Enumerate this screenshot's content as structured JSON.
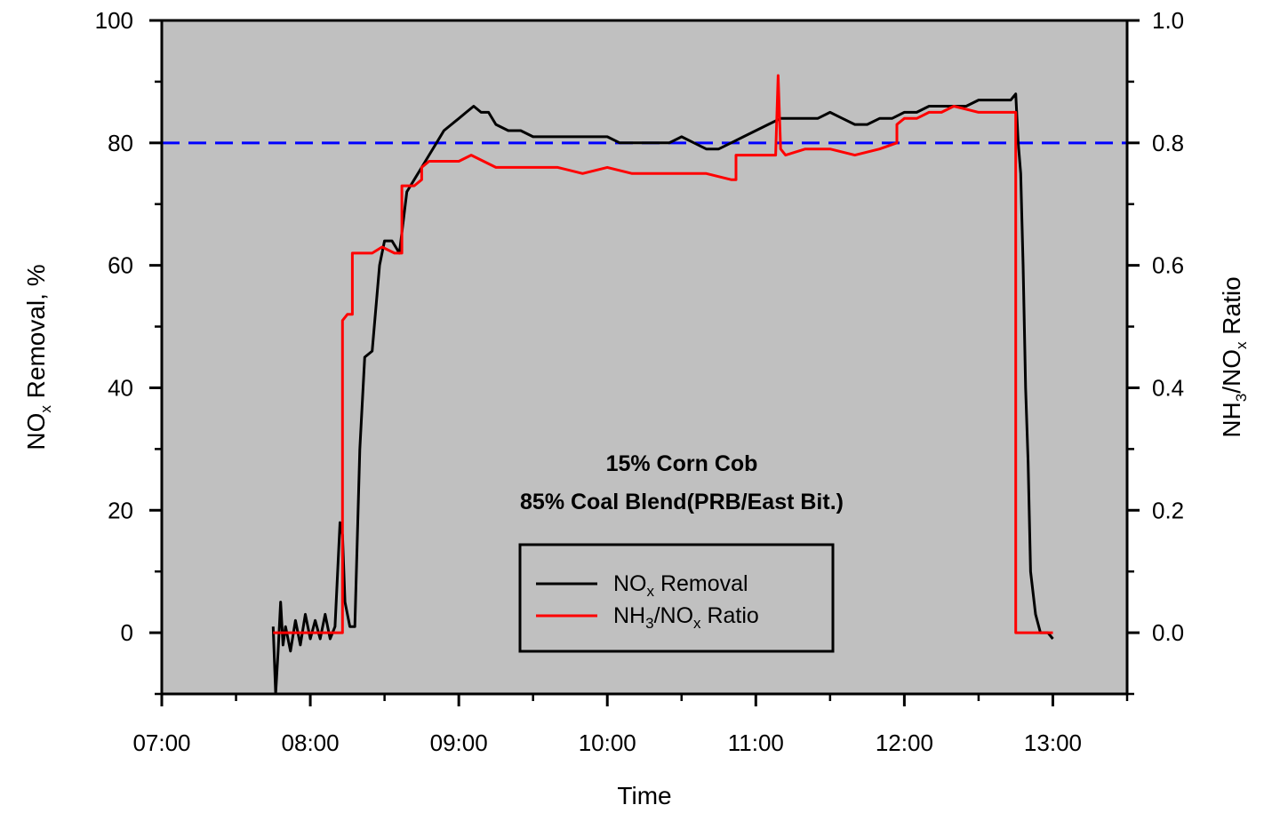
{
  "chart_data": {
    "type": "line",
    "xlabel": "Time",
    "ylabel_left": {
      "main": "NO",
      "sub": "x",
      "rest": " Removal, %"
    },
    "ylabel_right": {
      "a": "NH",
      "a_sub": "3",
      "b": "/NO",
      "b_sub": "x",
      "rest": " Ratio"
    },
    "xlim": [
      "07:00",
      "13:30"
    ],
    "ylim_left": [
      -10,
      100
    ],
    "ylim_right": [
      -0.1,
      1.0
    ],
    "x_ticks": [
      "07:00",
      "08:00",
      "09:00",
      "10:00",
      "11:00",
      "12:00",
      "13:00"
    ],
    "y_ticks_left": [
      "0",
      "20",
      "40",
      "60",
      "80",
      "100"
    ],
    "y_ticks_right": [
      "0.0",
      "0.2",
      "0.4",
      "0.6",
      "0.8",
      "1.0"
    ],
    "reference_line": {
      "y_left": 80,
      "style": "dashed",
      "color": "#0000ff"
    },
    "annotation": [
      "15% Corn Cob",
      "85% Coal Blend(PRB/East Bit.)"
    ],
    "legend_placement": "lower-center",
    "background": "#c0c0c0",
    "series": [
      {
        "axis": "left",
        "color": "#000000",
        "legend": {
          "main": "NO",
          "sub": "x",
          "rest": " Removal"
        },
        "x": [
          "07:45",
          "07:46",
          "07:47",
          "07:48",
          "07:49",
          "07:50",
          "07:52",
          "07:54",
          "07:56",
          "07:58",
          "08:00",
          "08:02",
          "08:04",
          "08:06",
          "08:08",
          "08:10",
          "08:12",
          "08:13",
          "08:14",
          "08:16",
          "08:18",
          "08:20",
          "08:22",
          "08:25",
          "08:28",
          "08:30",
          "08:33",
          "08:36",
          "08:39",
          "08:42",
          "08:45",
          "08:48",
          "08:51",
          "08:54",
          "08:57",
          "09:00",
          "09:03",
          "09:06",
          "09:09",
          "09:12",
          "09:15",
          "09:20",
          "09:25",
          "09:30",
          "09:35",
          "09:40",
          "09:45",
          "09:50",
          "09:55",
          "10:00",
          "10:05",
          "10:10",
          "10:15",
          "10:20",
          "10:25",
          "10:30",
          "10:35",
          "10:40",
          "10:45",
          "10:50",
          "10:55",
          "11:00",
          "11:05",
          "11:10",
          "11:15",
          "11:20",
          "11:25",
          "11:30",
          "11:35",
          "11:40",
          "11:45",
          "11:50",
          "11:55",
          "12:00",
          "12:05",
          "12:10",
          "12:15",
          "12:20",
          "12:25",
          "12:30",
          "12:35",
          "12:40",
          "12:43",
          "12:45",
          "12:46",
          "12:47",
          "12:48",
          "12:49",
          "12:50",
          "12:51",
          "12:53",
          "12:55",
          "12:58",
          "13:00"
        ],
        "y": [
          1,
          -10,
          -3,
          5,
          -2,
          1,
          -3,
          2,
          -2,
          3,
          -1,
          2,
          -1,
          3,
          -1,
          1,
          18,
          16,
          5,
          1,
          1,
          30,
          45,
          46,
          60,
          64,
          64,
          62,
          72,
          74,
          76,
          78,
          80,
          82,
          83,
          84,
          85,
          86,
          85,
          85,
          83,
          82,
          82,
          81,
          81,
          81,
          81,
          81,
          81,
          81,
          80,
          80,
          80,
          80,
          80,
          81,
          80,
          79,
          79,
          80,
          81,
          82,
          83,
          84,
          84,
          84,
          84,
          85,
          84,
          83,
          83,
          84,
          84,
          85,
          85,
          86,
          86,
          86,
          86,
          87,
          87,
          87,
          87,
          88,
          80,
          75,
          60,
          40,
          28,
          10,
          3,
          0,
          0,
          -1
        ]
      },
      {
        "axis": "right",
        "color": "#ff0000",
        "legend": {
          "a": "NH",
          "a_sub": "3",
          "b": "/NO",
          "b_sub": "x",
          "rest": " Ratio"
        },
        "x": [
          "07:45",
          "08:13",
          "08:13",
          "08:15",
          "08:17",
          "08:17",
          "08:25",
          "08:25",
          "08:29",
          "08:34",
          "08:37",
          "08:37",
          "08:42",
          "08:45",
          "08:45",
          "08:48",
          "09:00",
          "09:05",
          "09:10",
          "09:15",
          "09:20",
          "09:30",
          "09:40",
          "09:50",
          "10:00",
          "10:10",
          "10:20",
          "10:30",
          "10:40",
          "10:50",
          "10:52",
          "10:52",
          "11:00",
          "11:08",
          "11:09",
          "11:10",
          "11:12",
          "11:20",
          "11:30",
          "11:40",
          "11:50",
          "11:57",
          "11:57",
          "12:00",
          "12:05",
          "12:10",
          "12:15",
          "12:20",
          "12:30",
          "12:40",
          "12:45",
          "12:45",
          "13:00"
        ],
        "y": [
          0.0,
          0.0,
          0.51,
          0.52,
          0.52,
          0.62,
          0.62,
          0.62,
          0.63,
          0.62,
          0.62,
          0.73,
          0.73,
          0.74,
          0.76,
          0.77,
          0.77,
          0.78,
          0.77,
          0.76,
          0.76,
          0.76,
          0.76,
          0.75,
          0.76,
          0.75,
          0.75,
          0.75,
          0.75,
          0.74,
          0.74,
          0.78,
          0.78,
          0.78,
          0.91,
          0.79,
          0.78,
          0.79,
          0.79,
          0.78,
          0.79,
          0.8,
          0.83,
          0.84,
          0.84,
          0.85,
          0.85,
          0.86,
          0.85,
          0.85,
          0.85,
          0.0,
          0.0
        ]
      }
    ]
  }
}
